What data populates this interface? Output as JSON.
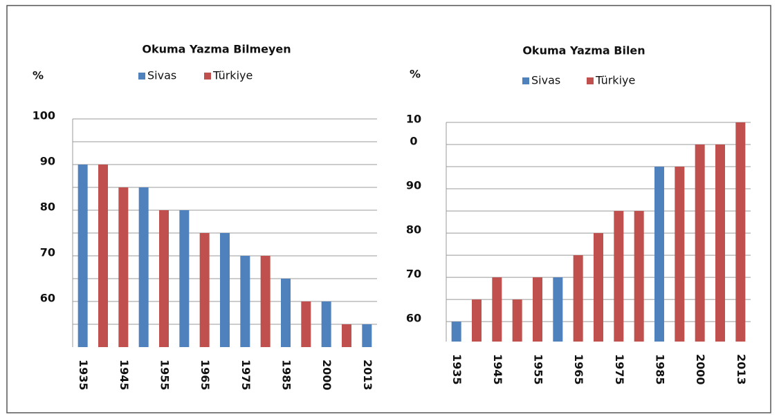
{
  "chart_data": [
    {
      "type": "bar",
      "title": "Okuma Yazma Bilmeyen",
      "ylabel": "%",
      "categories": [
        "1935",
        null,
        "1945",
        null,
        "1955",
        null,
        "1965",
        null,
        "1975",
        null,
        "1985",
        null,
        "2000",
        null,
        "2013"
      ],
      "series": [
        {
          "name": "Sivas",
          "color": "#4f81bd",
          "values": [
            90,
            null,
            null,
            85,
            null,
            80,
            null,
            75,
            70,
            null,
            65,
            null,
            60,
            null,
            55
          ]
        },
        {
          "name": "Türkiye",
          "color": "#c0504d",
          "values": [
            null,
            90,
            85,
            null,
            80,
            null,
            75,
            null,
            null,
            70,
            null,
            60,
            null,
            55,
            null
          ]
        }
      ],
      "ylim": [
        50,
        100
      ],
      "yticks": [
        100,
        90,
        80,
        70,
        60
      ],
      "minor_yticks": [
        95,
        85,
        75,
        65,
        55
      ],
      "grid": true
    },
    {
      "type": "bar",
      "title": "Okuma Yazma Bilen",
      "ylabel": "%",
      "categories": [
        "1935",
        null,
        "1945",
        null,
        "1955",
        null,
        "1965",
        null,
        "1975",
        null,
        "1985",
        null,
        "2000",
        null,
        "2013"
      ],
      "series": [
        {
          "name": "Sivas",
          "color": "#4f81bd",
          "values": [
            60,
            null,
            null,
            null,
            null,
            70,
            null,
            null,
            null,
            null,
            95,
            null,
            null,
            null,
            null
          ]
        },
        {
          "name": "Türkiye",
          "color": "#c0504d",
          "values": [
            null,
            65,
            70,
            65,
            70,
            null,
            75,
            80,
            85,
            85,
            null,
            95,
            100,
            100,
            105
          ]
        }
      ],
      "ylim": [
        55.5,
        105
      ],
      "yticks": [
        {
          "value": 105,
          "label": "10"
        },
        {
          "value": 100,
          "label": "0"
        },
        90,
        80,
        70,
        60
      ],
      "minor_yticks": [
        95,
        85,
        75,
        65
      ],
      "grid": true
    }
  ]
}
